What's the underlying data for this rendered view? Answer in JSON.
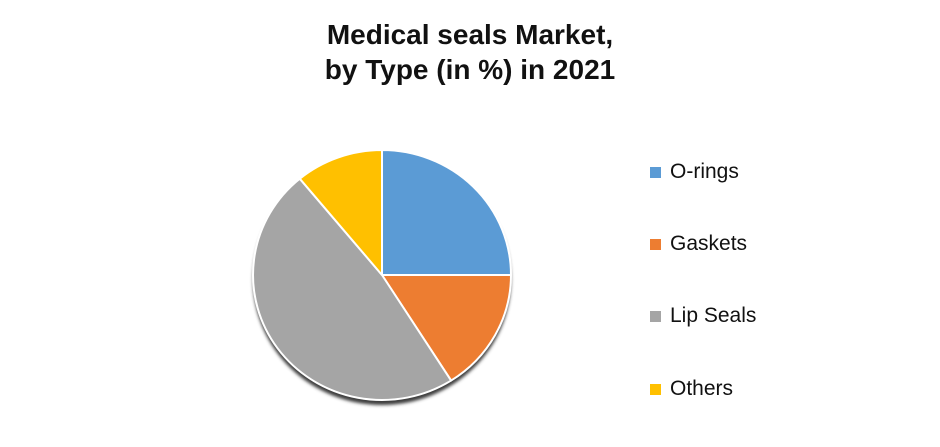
{
  "title": {
    "line1": "Medical seals  Market,",
    "line2": "by Type (in %) in 2021"
  },
  "chart_data": {
    "type": "pie",
    "title": "Medical seals Market, by Type (in %) in 2021",
    "categories": [
      "O-rings",
      "Gaskets",
      "Lip Seals",
      "Others"
    ],
    "values": [
      25,
      16,
      48,
      11
    ],
    "unit": "%",
    "colors": [
      "#5B9BD5",
      "#ED7D31",
      "#A5A5A5",
      "#FFC000"
    ],
    "legend_position": "right",
    "start_angle_deg": 0,
    "direction": "clockwise",
    "data_labels_shown": false,
    "slice_border_color": "#FFFFFF",
    "shadow_color": "#3D3D3D",
    "background_color": "#FFFFFF",
    "title_color": "#111111"
  }
}
